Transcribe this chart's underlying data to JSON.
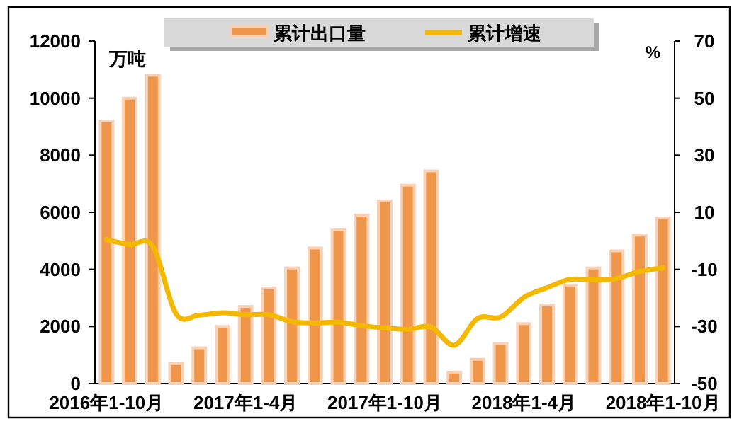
{
  "chart_data": {
    "type": "bar",
    "ylabel": "万吨",
    "y2label": "%",
    "legend": "top",
    "categories": [
      "2016年1-10月",
      null,
      null,
      null,
      null,
      null,
      "2017年1-4月",
      null,
      null,
      null,
      null,
      null,
      "2017年1-10月",
      null,
      null,
      null,
      null,
      null,
      "2018年1-4月",
      null,
      null,
      null,
      null,
      null,
      "2018年1-10月"
    ],
    "ylim": [
      0,
      12000
    ],
    "yticks": [
      0,
      2000,
      4000,
      6000,
      8000,
      10000,
      12000
    ],
    "y2lim": [
      -50,
      70
    ],
    "y2ticks": [
      -50,
      -30,
      -10,
      10,
      30,
      50,
      70
    ],
    "series": [
      {
        "name": "累计出口量",
        "color": "#f0964a",
        "values": [
          9200,
          10000,
          10800,
          700,
          1250,
          2000,
          2700,
          3350,
          4050,
          4750,
          5400,
          5900,
          6400,
          6950,
          7450,
          400,
          850,
          1400,
          2100,
          2750,
          3450,
          4050,
          4650,
          5200,
          5800
        ]
      },
      {
        "name": "累计增速",
        "type": "line",
        "axis": "y2",
        "color": "#f5b800",
        "values": [
          0.4,
          -1.3,
          -1.9,
          -25.6,
          -26,
          -25.2,
          -25.9,
          -25.9,
          -28.3,
          -28.8,
          -28.5,
          -29.7,
          -30.5,
          -31,
          -30.2,
          -36.6,
          -27.2,
          -26.7,
          -19.8,
          -16.4,
          -13.5,
          -13.7,
          -13.2,
          -10.7,
          -9.5
        ]
      }
    ]
  }
}
